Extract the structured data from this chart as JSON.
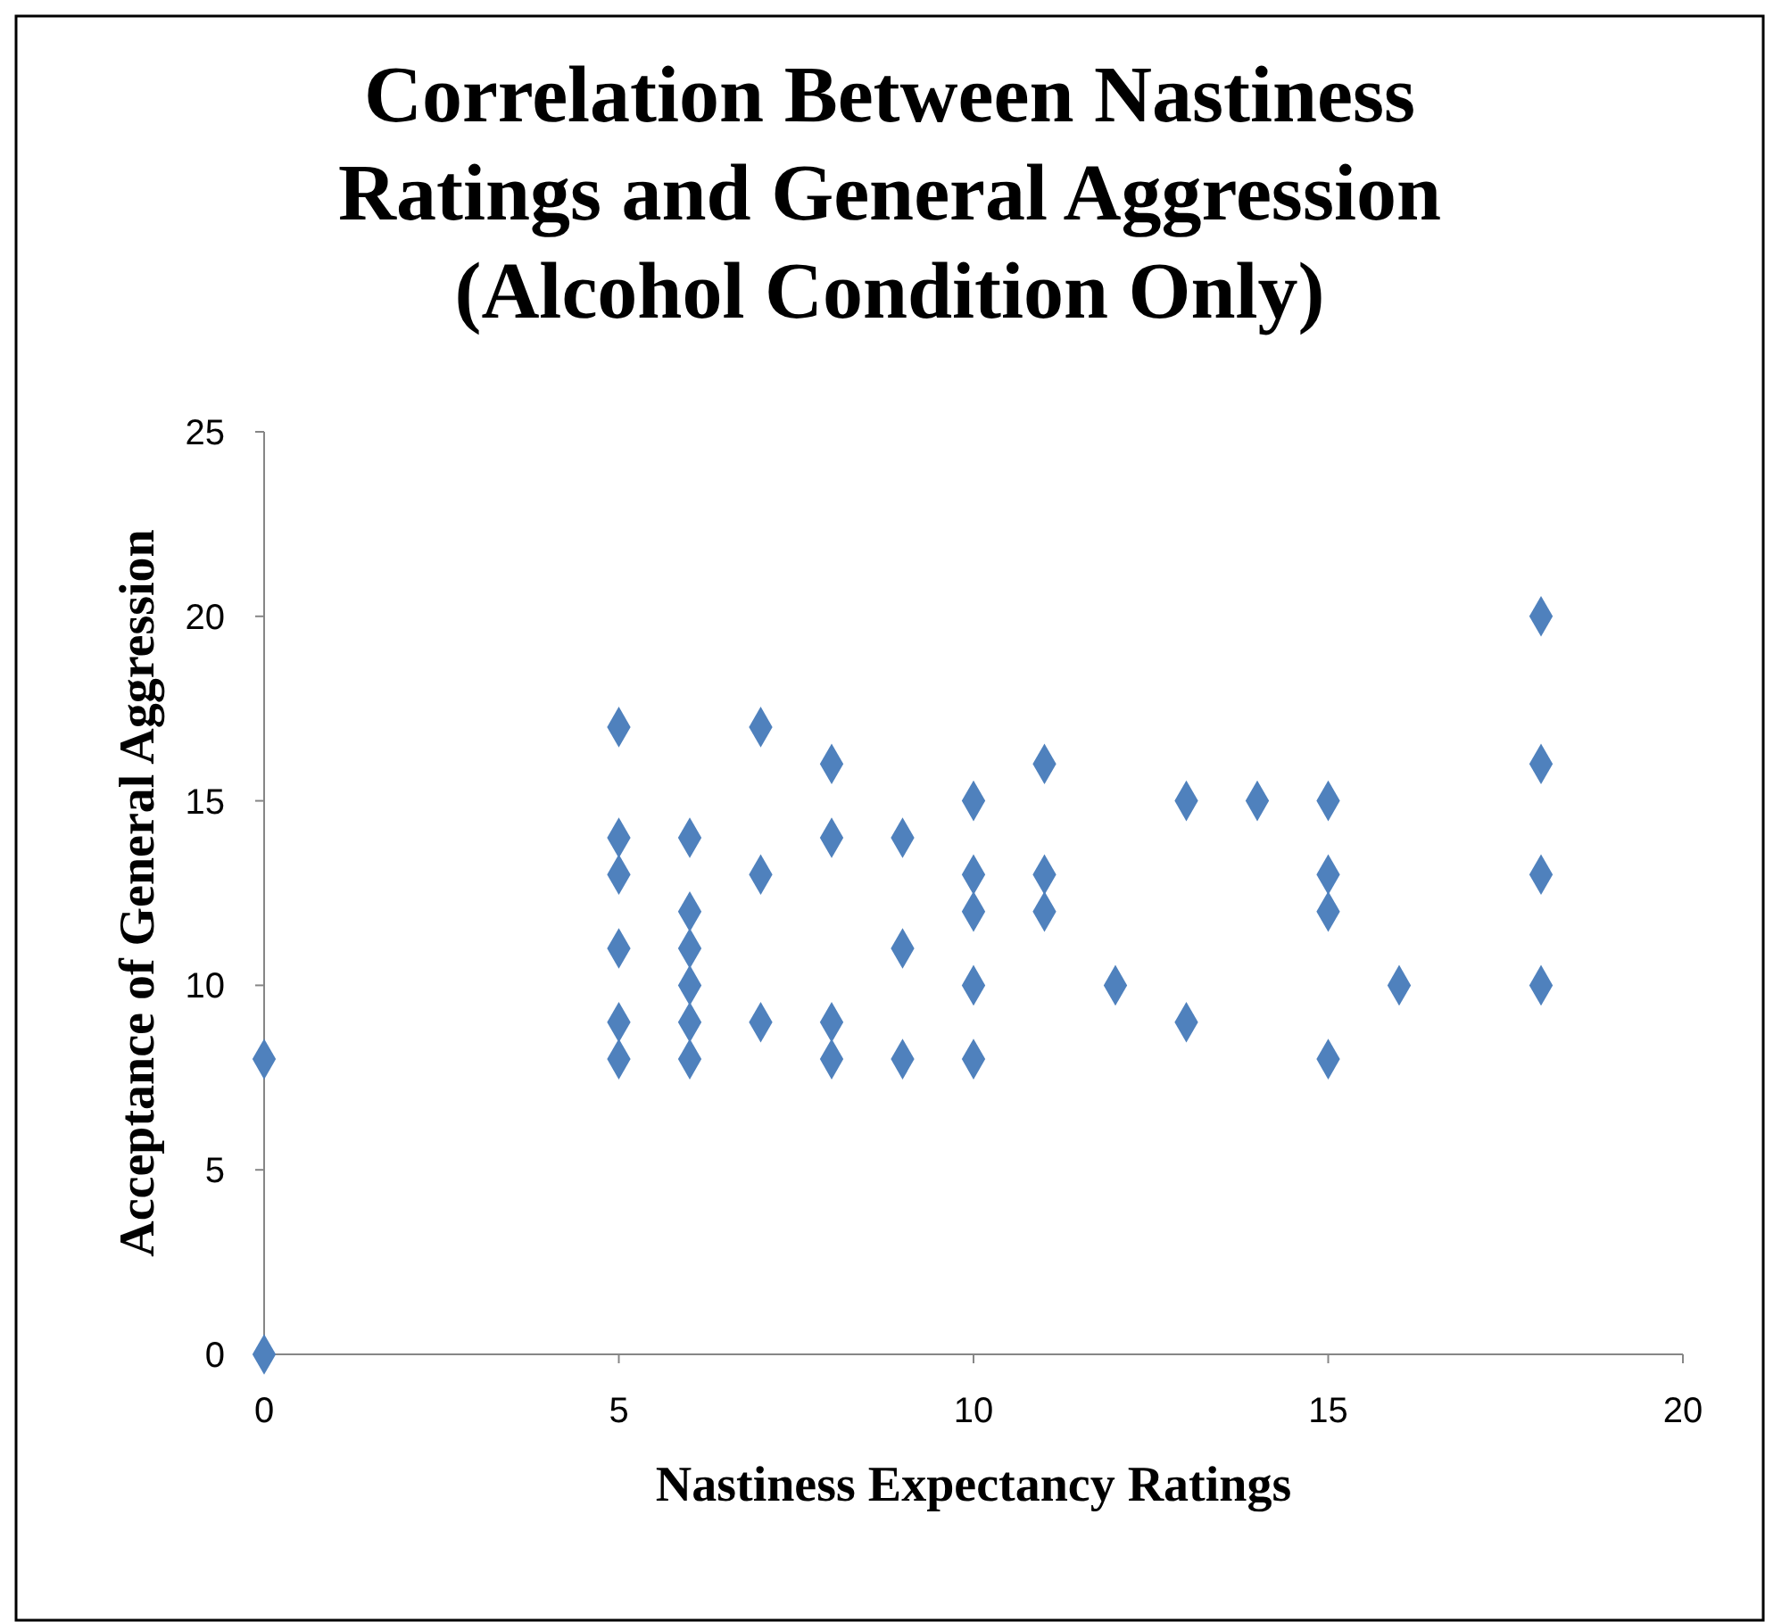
{
  "chart_data": {
    "type": "scatter",
    "title": "Correlation Between Nastiness\nRatings and General Aggression\n(Alcohol Condition Only)",
    "xlabel": "Nastiness Expectancy Ratings",
    "ylabel": "Acceptance of General Aggression",
    "xlim": [
      0,
      20
    ],
    "xticks": [
      0,
      5,
      10,
      15,
      20
    ],
    "ylim": [
      0,
      25
    ],
    "yticks": [
      0,
      5,
      10,
      15,
      20,
      25
    ],
    "grid": false,
    "marker": "diamond",
    "series": [
      {
        "color": "#4f81bd",
        "x": [
          0,
          0,
          5,
          5,
          5,
          5,
          5,
          5,
          6,
          6,
          6,
          6,
          6,
          6,
          7,
          7,
          7,
          8,
          8,
          8,
          8,
          9,
          9,
          9,
          10,
          10,
          10,
          10,
          10,
          11,
          11,
          11,
          12,
          13,
          13,
          14,
          15,
          15,
          15,
          15,
          16,
          18,
          18,
          18,
          18
        ],
        "values": [
          8,
          0,
          17,
          14,
          13,
          11,
          9,
          8,
          14,
          12,
          11,
          10,
          9,
          8,
          17,
          13,
          9,
          16,
          14,
          9,
          8,
          14,
          11,
          8,
          15,
          13,
          12,
          10,
          8,
          16,
          13,
          12,
          10,
          15,
          9,
          15,
          15,
          13,
          12,
          8,
          10,
          20,
          16,
          13,
          10
        ]
      }
    ]
  }
}
